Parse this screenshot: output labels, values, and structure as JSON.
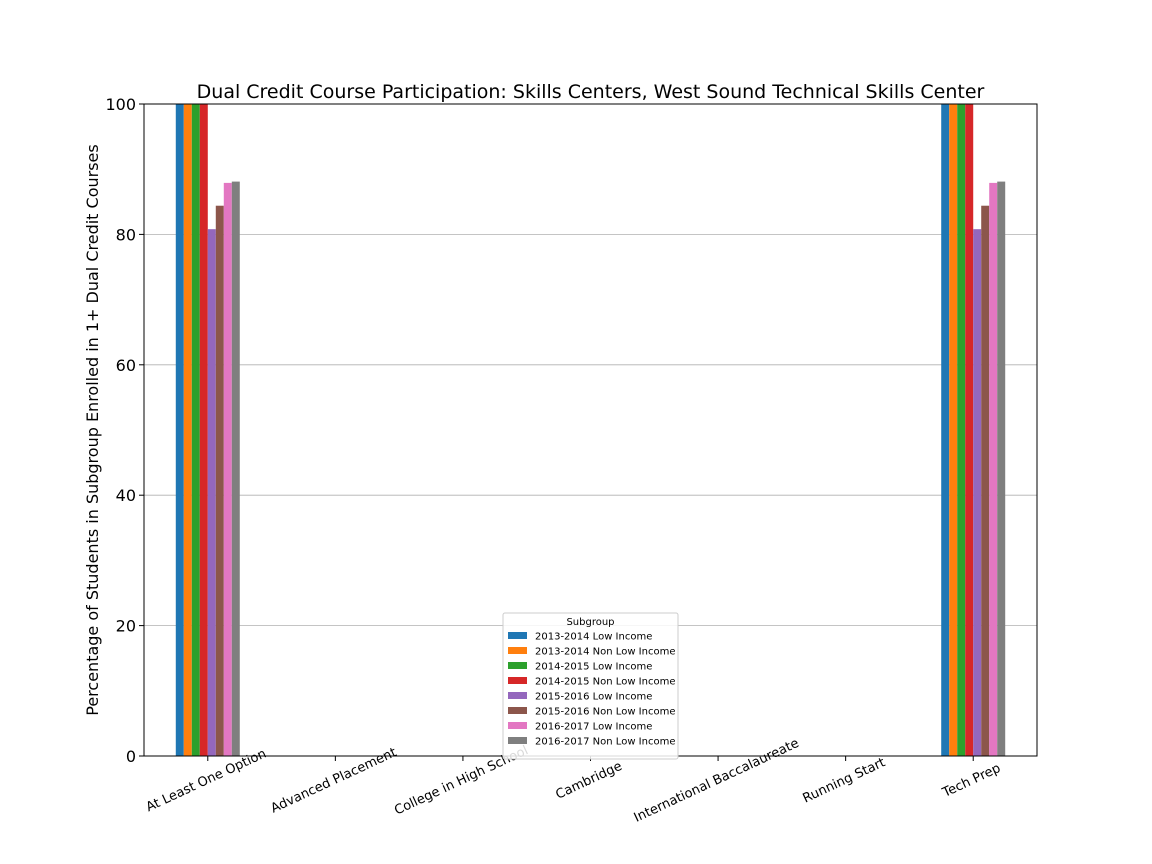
{
  "chart_data": {
    "type": "bar",
    "title": "Dual Credit Course Participation: Skills Centers, West Sound Technical Skills Center",
    "xlabel": "",
    "ylabel": "Percentage of Students in Subgroup Enrolled in 1+ Dual Credit Courses",
    "ylim": [
      0,
      100
    ],
    "yticks": [
      0,
      20,
      40,
      60,
      80,
      100
    ],
    "grid": "horizontal",
    "legend": {
      "title": "Subgroup",
      "placement": "lower-center"
    },
    "categories": [
      "At Least One Option",
      "Advanced Placement",
      "College in High School",
      "Cambridge",
      "International Baccalaureate",
      "Running Start",
      "Tech Prep"
    ],
    "series": [
      {
        "name": "2013-2014 Low Income",
        "color": "#1f77b4",
        "values": [
          100,
          0,
          0,
          0,
          0,
          0,
          100
        ]
      },
      {
        "name": "2013-2014 Non Low Income",
        "color": "#ff7f0e",
        "values": [
          100,
          0,
          0,
          0,
          0,
          0,
          100
        ]
      },
      {
        "name": "2014-2015 Low Income",
        "color": "#2ca02c",
        "values": [
          100,
          0,
          0,
          0,
          0,
          0,
          100
        ]
      },
      {
        "name": "2014-2015 Non Low Income",
        "color": "#d62728",
        "values": [
          100,
          0,
          0,
          0,
          0,
          0,
          100
        ]
      },
      {
        "name": "2015-2016 Low Income",
        "color": "#9467bd",
        "values": [
          80.8,
          0,
          0,
          0,
          0,
          0,
          80.8
        ]
      },
      {
        "name": "2015-2016 Non Low Income",
        "color": "#8c564b",
        "values": [
          84.4,
          0,
          0,
          0,
          0,
          0,
          84.4
        ]
      },
      {
        "name": "2016-2017 Low Income",
        "color": "#e377c2",
        "values": [
          87.9,
          0,
          0,
          0,
          0,
          0,
          87.9
        ]
      },
      {
        "name": "2016-2017 Non Low Income",
        "color": "#7f7f7f",
        "values": [
          88.1,
          0,
          0,
          0,
          0,
          0,
          88.1
        ]
      }
    ]
  }
}
